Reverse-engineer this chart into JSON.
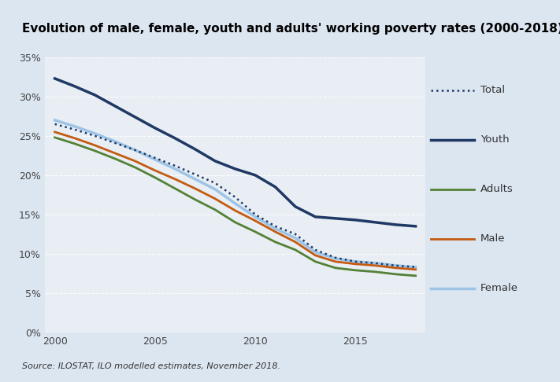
{
  "title": "Evolution of male, female, youth and adults' working poverty rates (2000-2018)",
  "source_text": "Source: ILOSTAT, ILO modelled estimates, November 2018.",
  "years": [
    2000,
    2001,
    2002,
    2003,
    2004,
    2005,
    2006,
    2007,
    2008,
    2009,
    2010,
    2011,
    2012,
    2013,
    2014,
    2015,
    2016,
    2017,
    2018
  ],
  "total": [
    26.5,
    25.8,
    25.0,
    24.1,
    23.2,
    22.2,
    21.2,
    20.1,
    19.0,
    17.2,
    15.0,
    13.5,
    12.5,
    10.5,
    9.5,
    9.0,
    8.8,
    8.5,
    8.3
  ],
  "youth": [
    32.3,
    31.3,
    30.2,
    28.8,
    27.4,
    26.0,
    24.7,
    23.3,
    21.8,
    20.8,
    20.0,
    18.5,
    16.0,
    14.7,
    14.5,
    14.3,
    14.0,
    13.7,
    13.5
  ],
  "adults": [
    24.8,
    24.0,
    23.1,
    22.1,
    21.0,
    19.7,
    18.3,
    16.9,
    15.6,
    14.0,
    12.8,
    11.5,
    10.5,
    9.0,
    8.2,
    7.9,
    7.7,
    7.4,
    7.2
  ],
  "male": [
    25.5,
    24.7,
    23.8,
    22.8,
    21.8,
    20.6,
    19.5,
    18.3,
    17.0,
    15.5,
    14.2,
    12.8,
    11.5,
    9.8,
    9.0,
    8.7,
    8.5,
    8.2,
    8.0
  ],
  "female": [
    27.0,
    26.2,
    25.3,
    24.3,
    23.2,
    22.0,
    20.8,
    19.5,
    18.2,
    16.4,
    14.7,
    13.2,
    12.0,
    10.2,
    9.4,
    9.0,
    8.8,
    8.5,
    8.3
  ],
  "color_total": "#1f3864",
  "color_youth": "#1f3864",
  "color_adults": "#538135",
  "color_male": "#c55a11",
  "color_female": "#9dc3e6",
  "ylim": [
    0,
    35
  ],
  "yticks": [
    0,
    5,
    10,
    15,
    20,
    25,
    30,
    35
  ],
  "background_color": "#e8eef4",
  "plot_bg_color": "#e8eef4",
  "outer_bg_color": "#dce6f1",
  "title_fontsize": 11,
  "label_fontsize": 9
}
